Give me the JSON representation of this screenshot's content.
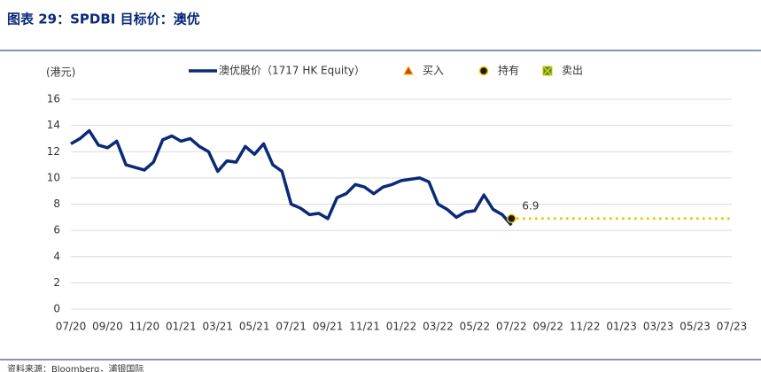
{
  "header": {
    "title": "图表 29：SPDBI 目标价：澳优"
  },
  "chart_data": {
    "type": "line",
    "y_label": "(港元)",
    "categories": [
      "07/20",
      null,
      null,
      null,
      "09/20",
      null,
      null,
      null,
      "11/20",
      null,
      null,
      null,
      "01/21",
      null,
      null,
      null,
      "03/21",
      null,
      null,
      null,
      "05/21",
      null,
      null,
      null,
      "07/21",
      null,
      null,
      null,
      "09/21",
      null,
      null,
      null,
      "11/21",
      null,
      null,
      null,
      "01/22",
      null,
      null,
      null,
      "03/22",
      null,
      null,
      null,
      "05/22",
      null,
      null,
      null,
      "07/22",
      null,
      null,
      null,
      "09/22",
      null,
      null,
      null,
      "11/22",
      null,
      null,
      null,
      "01/23",
      null,
      null,
      null,
      "03/23",
      null,
      null,
      null,
      "05/23",
      null,
      null,
      null,
      "07/23"
    ],
    "series": [
      {
        "name": "澳优股价（1717 HK Equity）",
        "color": "#0a2a78",
        "style": "solid",
        "values": [
          12.6,
          13.0,
          13.6,
          12.5,
          12.3,
          12.8,
          11.0,
          10.8,
          10.6,
          11.2,
          12.9,
          13.2,
          12.8,
          13.0,
          12.4,
          12.0,
          10.5,
          11.3,
          11.2,
          12.4,
          11.8,
          12.6,
          11.0,
          10.5,
          8.0,
          7.7,
          7.2,
          7.3,
          6.9,
          8.5,
          8.8,
          9.5,
          9.3,
          8.8,
          9.3,
          9.5,
          9.8,
          9.9,
          10.0,
          9.7,
          8.0,
          7.6,
          7.0,
          7.4,
          7.5,
          8.7,
          7.6,
          7.2,
          6.4,
          null,
          null,
          null,
          null,
          null,
          null,
          null,
          null,
          null,
          null,
          null,
          null,
          null,
          null,
          null,
          null,
          null,
          null,
          null,
          null,
          null,
          null,
          null,
          null
        ]
      },
      {
        "name": "买入",
        "color": "#e03a1e",
        "marker": "triangle"
      },
      {
        "name": "持有",
        "color": "#f2c200",
        "style": "dotted",
        "marker": "circle",
        "values": [
          null,
          null,
          null,
          null,
          null,
          null,
          null,
          null,
          null,
          null,
          null,
          null,
          null,
          null,
          null,
          null,
          null,
          null,
          null,
          null,
          null,
          null,
          null,
          null,
          null,
          null,
          null,
          null,
          null,
          null,
          null,
          null,
          null,
          null,
          null,
          null,
          null,
          null,
          null,
          null,
          null,
          null,
          null,
          null,
          null,
          null,
          null,
          null,
          6.9,
          6.9,
          6.9,
          6.9,
          6.9,
          6.9,
          6.9,
          6.9,
          6.9,
          6.9,
          6.9,
          6.9,
          6.9,
          6.9,
          6.9,
          6.9,
          6.9,
          6.9,
          6.9,
          6.9,
          6.9,
          6.9,
          6.9,
          6.9,
          6.9
        ]
      },
      {
        "name": "卖出",
        "color": "#3a9a3a",
        "marker": "square"
      }
    ],
    "ylim": [
      0,
      16
    ],
    "yticks": [
      0,
      2,
      4,
      6,
      8,
      10,
      12,
      14,
      16
    ],
    "grid": true
  },
  "footer": {
    "source": "资料来源：Bloomberg，浦银国际"
  }
}
